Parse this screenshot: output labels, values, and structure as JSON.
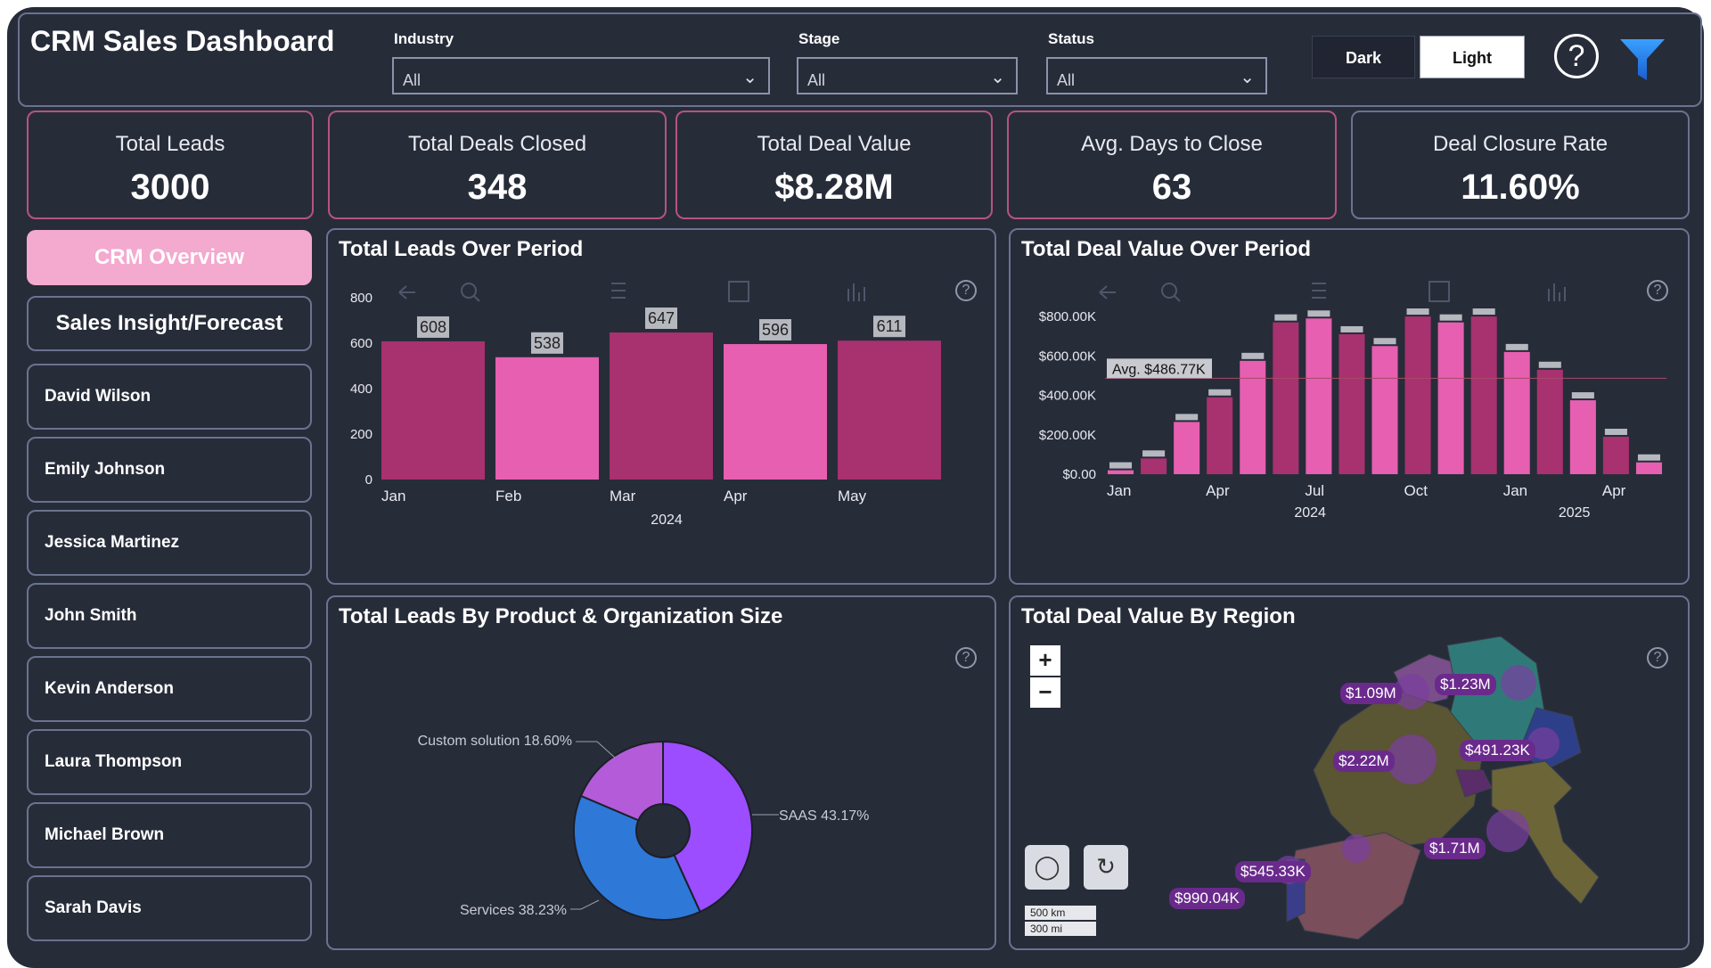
{
  "app": {
    "title": "CRM Sales Dashboard"
  },
  "filters": [
    {
      "label": "Industry",
      "value": "All"
    },
    {
      "label": "Stage",
      "value": "All"
    },
    {
      "label": "Status",
      "value": "All"
    }
  ],
  "theme": {
    "dark_label": "Dark",
    "light_label": "Light",
    "help_icon": "question-circle-icon",
    "filter_icon": "funnel-icon"
  },
  "kpis": [
    {
      "label": "Total Leads",
      "value": "3000"
    },
    {
      "label": "Total Deals Closed",
      "value": "348"
    },
    {
      "label": "Total Deal Value",
      "value": "$8.28M"
    },
    {
      "label": "Avg. Days to Close",
      "value": "63"
    },
    {
      "label": "Deal Closure Rate",
      "value": "11.60%"
    }
  ],
  "nav": {
    "active": "CRM Overview",
    "main": "Sales Insight/Forecast",
    "people": [
      "David Wilson",
      "Emily Johnson",
      "Jessica Martinez",
      "John Smith",
      "Kevin Anderson",
      "Laura Thompson",
      "Michael Brown",
      "Sarah Davis"
    ]
  },
  "colors": {
    "accent_pink": "#f4a9cf",
    "bar_dark": "#a8316f",
    "bar_light": "#e75fb0",
    "background": "#272c39"
  },
  "charts": {
    "leads_title": "Total Leads Over Period",
    "deal_value_title": "Total Deal Value Over Period",
    "product_title": "Total Leads By Product & Organization Size",
    "region_title": "Total Deal Value By Region"
  },
  "chart_data": [
    {
      "type": "bar",
      "title": "Total Leads Over Period",
      "categories": [
        "Jan",
        "Feb",
        "Mar",
        "Apr",
        "May"
      ],
      "year_label": "2024",
      "values": [
        608,
        538,
        647,
        596,
        611
      ],
      "ylim": [
        0,
        800
      ],
      "yticks": [
        0,
        200,
        400,
        600,
        800
      ]
    },
    {
      "type": "bar",
      "title": "Total Deal Value Over Period",
      "categories": [
        "2024-01",
        "2024-02",
        "2024-03",
        "2024-04",
        "2024-05",
        "2024-06",
        "2024-07",
        "2024-08",
        "2024-09",
        "2024-10",
        "2024-11",
        "2024-12",
        "2025-01",
        "2025-02",
        "2025-03",
        "2025-04",
        "2025-05"
      ],
      "values": [
        20000,
        80000,
        265000,
        390000,
        575000,
        770000,
        790000,
        710000,
        650000,
        800000,
        770000,
        800000,
        620000,
        530000,
        375000,
        190000,
        60000
      ],
      "x_tick_labels": [
        "Jan",
        "Apr",
        "Jul",
        "Oct",
        "Jan",
        "Apr"
      ],
      "year_labels": [
        "2024",
        "2025"
      ],
      "ylim": [
        0,
        850000
      ],
      "yticks": [
        "$0.00",
        "$200.00K",
        "$400.00K",
        "$600.00K",
        "$800.00K"
      ],
      "average_label": "Avg. $486.77K",
      "average": 486770
    },
    {
      "type": "pie",
      "title": "Total Leads By Product & Organization Size",
      "labels": [
        "SAAS",
        "Services",
        "Custom solution"
      ],
      "values": [
        43.17,
        38.23,
        18.6
      ],
      "slice_labels": [
        "SAAS 43.17%",
        "Services 38.23%",
        "Custom solution 18.60%"
      ]
    }
  ],
  "map": {
    "title": "Total Deal Value By Region",
    "zoom_in": "+",
    "zoom_out": "−",
    "labels": [
      "$1.09M",
      "$1.23M",
      "$2.22M",
      "$491.23K",
      "$1.71M",
      "$545.33K",
      "$990.04K"
    ],
    "scale_km": "500 km",
    "scale_mi": "300 mi"
  }
}
